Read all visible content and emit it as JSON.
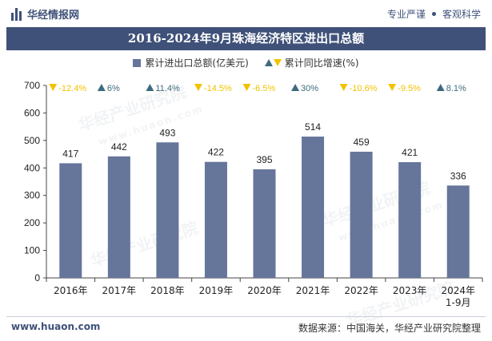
{
  "header": {
    "brand": "华经情报网",
    "slogan_left": "专业严谨",
    "slogan_right": "客观科学"
  },
  "title": "2016-2024年9月珠海经济特区进出口总额",
  "legend": {
    "bar_label": "累计进出口总额(亿美元)",
    "growth_label": "累计同比增速(%)"
  },
  "colors": {
    "bar": "#66759a",
    "up": "#3d6b7e",
    "down": "#f2c200",
    "title_bg": "#3f5179"
  },
  "chart_data": {
    "type": "bar",
    "categories": [
      "2016年",
      "2017年",
      "2018年",
      "2019年",
      "2020年",
      "2021年",
      "2022年",
      "2023年",
      "2024年\n1-9月"
    ],
    "values": [
      417,
      442,
      493,
      422,
      395,
      514,
      459,
      421,
      336
    ],
    "growth": [
      "-12.4%",
      "6%",
      "11.4%",
      "-14.5%",
      "-6.5%",
      "30%",
      "-10.6%",
      "-9.5%",
      "8.1%"
    ],
    "growth_direction": [
      "down",
      "up",
      "up",
      "down",
      "down",
      "up",
      "down",
      "down",
      "up"
    ],
    "ylim": [
      0,
      700
    ],
    "yticks": [
      0,
      100,
      200,
      300,
      400,
      500,
      600,
      700
    ],
    "grid": false
  },
  "footer": {
    "website": "www.huaon.com",
    "source": "数据来源：中国海关，华经产业研究院整理"
  },
  "watermark": {
    "text": "华经产业研究院",
    "url": "www.huaon.com"
  }
}
